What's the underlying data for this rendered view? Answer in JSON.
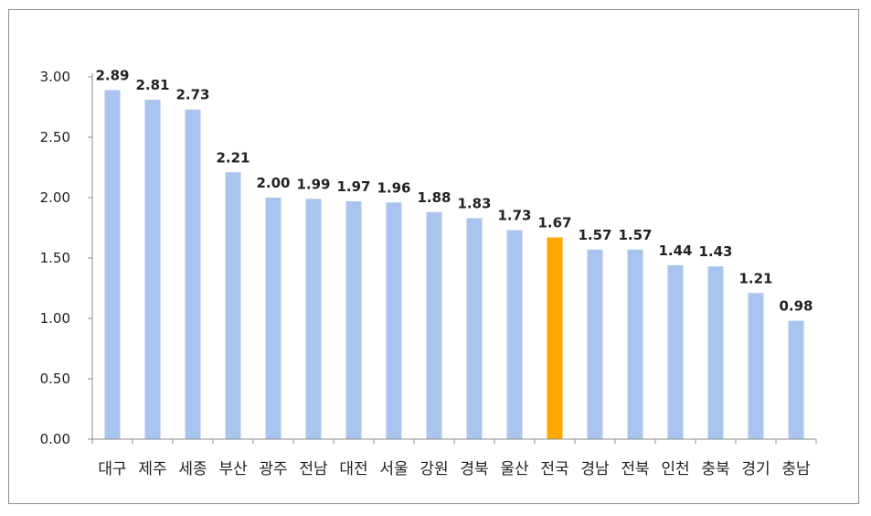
{
  "chart_data": {
    "type": "bar",
    "title": "",
    "xlabel": "",
    "ylabel": "",
    "ylim": [
      0,
      3.0
    ],
    "yticks": [
      "0.00",
      "0.50",
      "1.00",
      "1.50",
      "2.00",
      "2.50",
      "3.00"
    ],
    "grid": false,
    "categories": [
      "대구",
      "제주",
      "세종",
      "부산",
      "광주",
      "전남",
      "대전",
      "서울",
      "강원",
      "경북",
      "울산",
      "전국",
      "경남",
      "전북",
      "인천",
      "충북",
      "경기",
      "충남"
    ],
    "values": [
      2.89,
      2.81,
      2.73,
      2.21,
      2.0,
      1.99,
      1.97,
      1.96,
      1.88,
      1.83,
      1.73,
      1.67,
      1.57,
      1.57,
      1.44,
      1.43,
      1.21,
      0.98
    ],
    "value_labels": [
      "2.89",
      "2.81",
      "2.73",
      "2.21",
      "2.00",
      "1.99",
      "1.97",
      "1.96",
      "1.88",
      "1.83",
      "1.73",
      "1.67",
      "1.57",
      "1.57",
      "1.44",
      "1.43",
      "1.21",
      "0.98"
    ],
    "highlight_category": "전국",
    "colors": {
      "bar": "#a9c4ee",
      "highlight": "#ffa800",
      "axis": "#8c8c8c"
    }
  }
}
